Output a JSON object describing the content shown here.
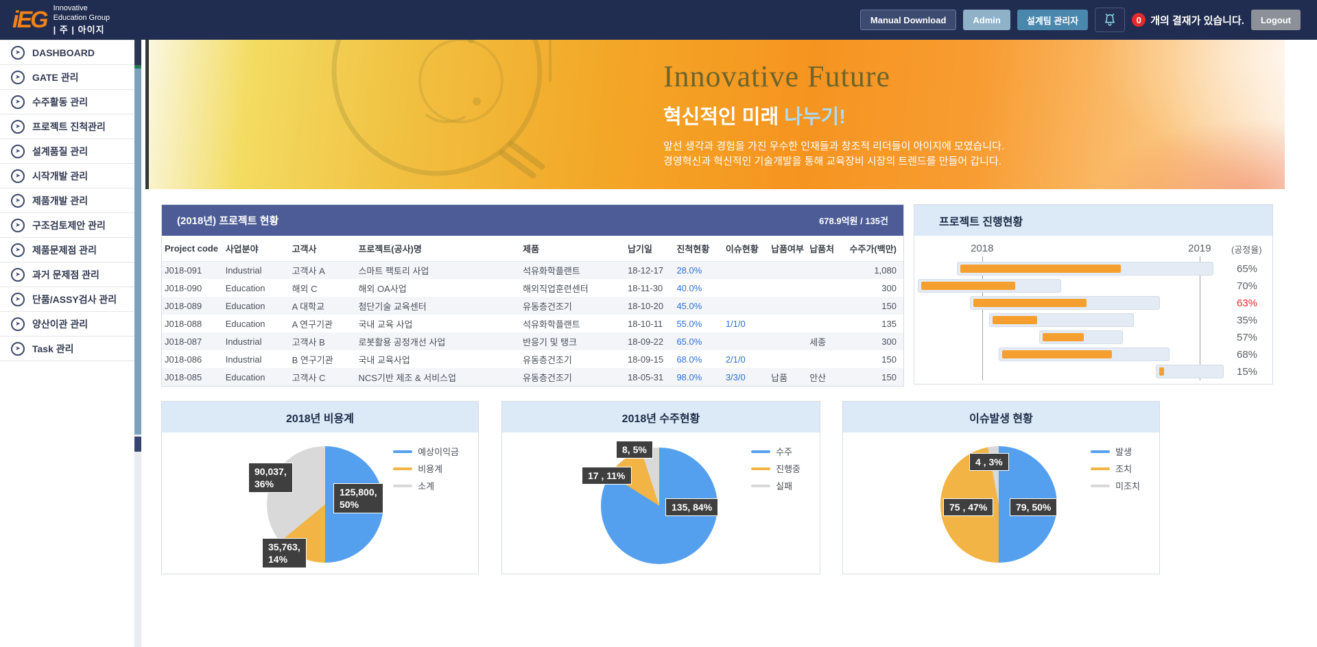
{
  "header": {
    "logo": {
      "mark": "iEG",
      "line1": "Innovative",
      "line2": "Education Group",
      "company": "| 주 | 아이지"
    },
    "buttons": {
      "manual_download": "Manual Download",
      "admin": "Admin",
      "design_team": "설계팀 관리자",
      "logout": "Logout"
    },
    "notification": {
      "badge": "0",
      "message": "개의 결재가 있습니다."
    }
  },
  "sidebar": {
    "items": [
      "DASHBOARD",
      "GATE 관리",
      "수주활동 관리",
      "프로젝트 진척관리",
      "설계품질 관리",
      "시작개발 관리",
      "제품개발 관리",
      "구조검토제안 관리",
      "제품문제점 관리",
      "과거 문제점 관리",
      "단품/ASSY검사 관리",
      "양산이관 관리",
      "Task 관리"
    ]
  },
  "banner": {
    "title": "Innovative Future",
    "subtitle": "혁신적인 미래 ",
    "subtitle_accent": "나누기!",
    "desc1": "앞선 생각과 경험을 가진 우수한 인재들과 창조적 리더들이 아이지에 모였습니다.",
    "desc2": "경영혁신과 혁신적인 기술개발을 통해 교육장비 시장의 트렌드를 만들어 갑니다."
  },
  "project_table": {
    "title": "(2018년) 프로젝트 현황",
    "summary": "678.9억원 / 135건",
    "columns": [
      "Project code",
      "사업분야",
      "고객사",
      "프로젝트(공사)명",
      "제품",
      "납기일",
      "진척현황",
      "이슈현황",
      "납품여부",
      "납품처",
      "수주가(백만)"
    ],
    "rows": [
      [
        "J018-091",
        "Industrial",
        "고객사 A",
        "스마트 팩토리 사업",
        "석유화학플랜트",
        "18-12-17",
        "28.0%",
        "",
        "",
        "",
        "1,080"
      ],
      [
        "J018-090",
        "Education",
        "해외 C",
        "해외 OA사업",
        "해외직업훈련센터",
        "18-11-30",
        "40.0%",
        "",
        "",
        "",
        "300"
      ],
      [
        "J018-089",
        "Education",
        "A 대학교",
        "첨단기술 교육센터",
        "유동층건조기",
        "18-10-20",
        "45.0%",
        "",
        "",
        "",
        "150"
      ],
      [
        "J018-088",
        "Education",
        "A 연구기관",
        "국내 교육 사업",
        "석유화학플랜트",
        "18-10-11",
        "55.0%",
        "1/1/0",
        "",
        "",
        "135"
      ],
      [
        "J018-087",
        "Industrial",
        "고객사 B",
        "로봇활용 공정개선 사업",
        "반응기 및 탱크",
        "18-09-22",
        "65.0%",
        "",
        "",
        "세종",
        "300"
      ],
      [
        "J018-086",
        "Industrial",
        "B 연구기관",
        "국내 교육사업",
        "유동층건조기",
        "18-09-15",
        "68.0%",
        "2/1/0",
        "",
        "",
        "150"
      ],
      [
        "J018-085",
        "Education",
        "고객사 C",
        "NCS기반 제조 & 서비스업",
        "유동층건조기",
        "18-05-31",
        "98.0%",
        "3/3/0",
        "납품",
        "안산",
        "150"
      ]
    ]
  },
  "chart_data": [
    {
      "type": "gantt",
      "title": "프로젝트 진행현황",
      "unit_label": "(공정율)",
      "axis": [
        {
          "label": "2018",
          "pos": 20.7
        },
        {
          "label": "2019",
          "pos": 90.7
        }
      ],
      "bar_color": "#f5a02e",
      "rows": [
        {
          "start": 12.6,
          "end": 95.1,
          "progress": 65,
          "label": "65%",
          "critical": false
        },
        {
          "start": 0.0,
          "end": 46.1,
          "progress": 70,
          "label": "70%",
          "critical": false
        },
        {
          "start": 16.8,
          "end": 77.9,
          "progress": 63,
          "label": "63%",
          "critical": true
        },
        {
          "start": 23.0,
          "end": 69.5,
          "progress": 35,
          "label": "35%",
          "critical": false
        },
        {
          "start": 39.1,
          "end": 66.0,
          "progress": 57,
          "label": "57%",
          "critical": false
        },
        {
          "start": 26.0,
          "end": 81.0,
          "progress": 68,
          "label": "68%",
          "critical": false
        },
        {
          "start": 76.6,
          "end": 98.5,
          "progress": 15,
          "label": "15%",
          "critical": false
        }
      ]
    },
    {
      "type": "pie",
      "title": "2018년 비용계",
      "legend_position": "right",
      "pie_pos": [
        153,
        20
      ],
      "slices": [
        {
          "name": "예상이익금",
          "value": 125800,
          "pct": 50,
          "color": "#55a0ee",
          "label": "125,800,\n50%",
          "label_pos": [
            250,
            74
          ]
        },
        {
          "name": "비용계",
          "value": 35763,
          "pct": 14,
          "color": "#f2b444",
          "label": "35,763,\n14%",
          "label_pos": [
            146,
            154
          ]
        },
        {
          "name": "소계",
          "value": 90037,
          "pct": 36,
          "color": "#d9d9d9",
          "label": "90,037,\n36%",
          "label_pos": [
            126,
            44
          ]
        }
      ]
    },
    {
      "type": "pie",
      "title": "2018년 수주현황",
      "legend_position": "right",
      "pie_pos": [
        144,
        22
      ],
      "slices": [
        {
          "name": "수주",
          "value": 135,
          "pct": 84,
          "color": "#55a0ee",
          "label": "135, 84%",
          "label_pos": [
            238,
            96
          ]
        },
        {
          "name": "진행중",
          "value": 17,
          "pct": 11,
          "color": "#f2b444",
          "label": "17 , 11%",
          "label_pos": [
            116,
            50
          ]
        },
        {
          "name": "실패",
          "value": 8,
          "pct": 5,
          "color": "#d9d9d9",
          "label": "8, 5%",
          "label_pos": [
            166,
            12
          ]
        }
      ]
    },
    {
      "type": "pie",
      "title": "이슈발생 현황",
      "legend_position": "right",
      "pie_pos": [
        142,
        20
      ],
      "slices": [
        {
          "name": "발생",
          "value": 79,
          "pct": 50,
          "color": "#55a0ee",
          "label": "79, 50%",
          "label_pos": [
            243,
            96
          ]
        },
        {
          "name": "조치",
          "value": 75,
          "pct": 47,
          "color": "#f2b444",
          "label": "75 , 47%",
          "label_pos": [
            146,
            96
          ]
        },
        {
          "name": "미조치",
          "value": 4,
          "pct": 3,
          "color": "#d9d9d9",
          "label": "4 , 3%",
          "label_pos": [
            184,
            30
          ]
        }
      ]
    }
  ]
}
